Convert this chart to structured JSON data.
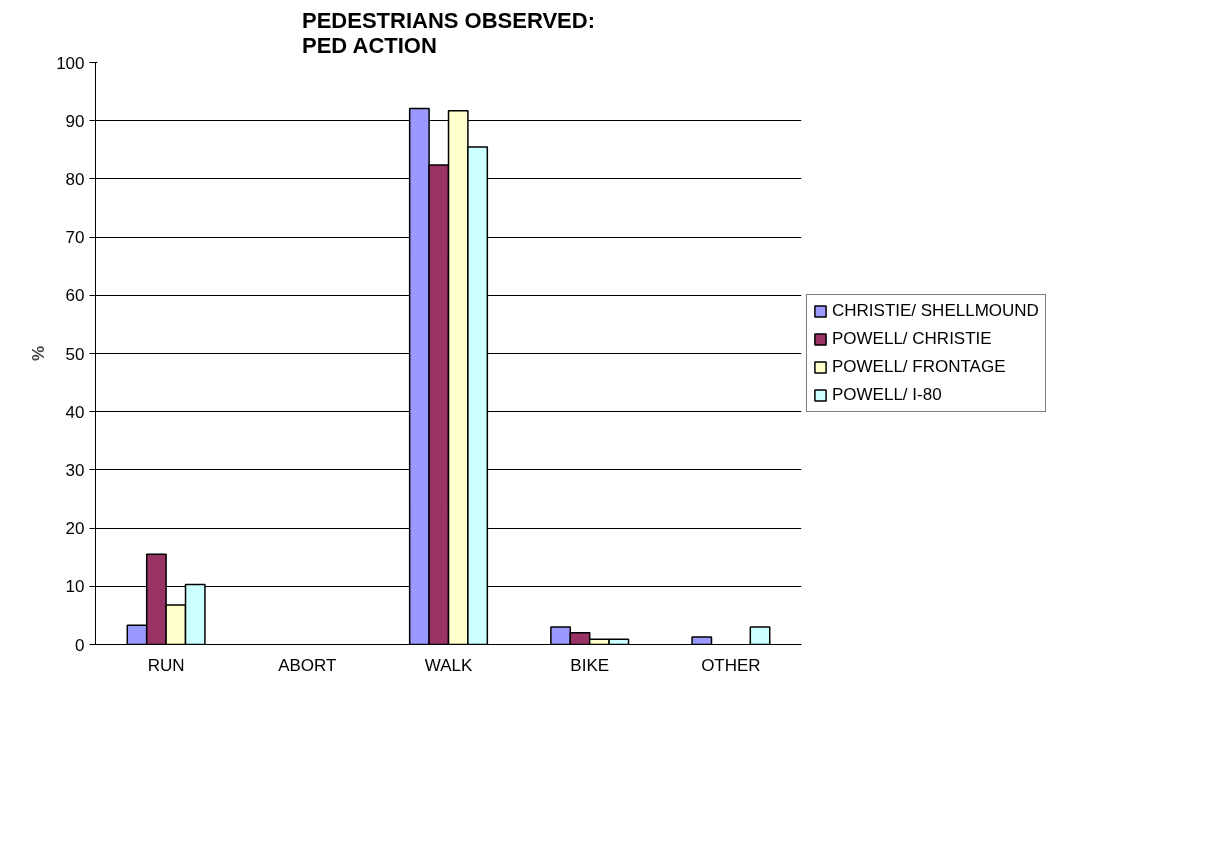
{
  "chart_data": {
    "type": "bar",
    "title": "PEDESTRIANS OBSERVED:\nPED ACTION",
    "ylabel": "%",
    "categories": [
      "RUN",
      "ABORT",
      "WALK",
      "BIKE",
      "OTHER"
    ],
    "series": [
      {
        "name": "CHRISTIE/ SHELLMOUND",
        "color": "#9999ff",
        "values": [
          3.3,
          null,
          92.1,
          3.0,
          1.3
        ]
      },
      {
        "name": "POWELL/ CHRISTIE",
        "color": "#993366",
        "values": [
          15.5,
          null,
          82.4,
          2.0,
          null
        ]
      },
      {
        "name": "POWELL/ FRONTAGE",
        "color": "#ffffcc",
        "values": [
          6.8,
          null,
          91.7,
          0.9,
          null
        ]
      },
      {
        "name": "POWELL/ I-80",
        "color": "#ccffff",
        "values": [
          10.3,
          null,
          85.5,
          0.9,
          3.0
        ]
      }
    ],
    "ylim": [
      0,
      100
    ],
    "yticks": [
      0,
      10,
      20,
      30,
      40,
      50,
      60,
      70,
      80,
      90,
      100
    ],
    "grid": "y",
    "legend": "right"
  }
}
